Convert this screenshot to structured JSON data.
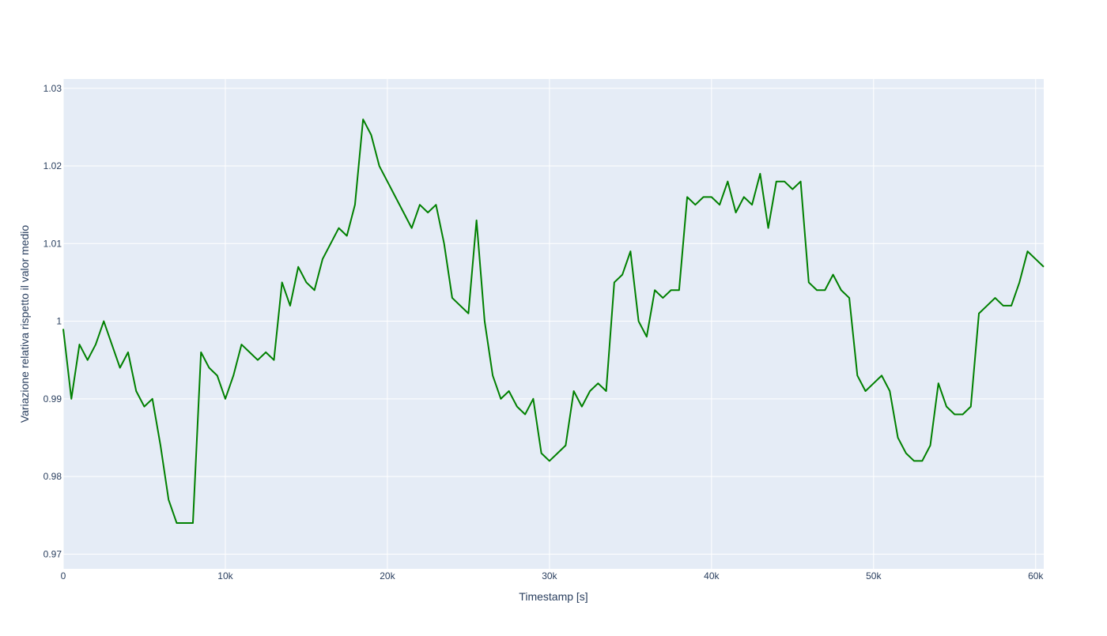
{
  "chart_data": {
    "type": "line",
    "x_label": "Timestamp [s]",
    "y_label": "Variazione relativa rispetto il valor medio",
    "x": [
      0,
      500,
      1000,
      1500,
      2000,
      2500,
      3000,
      3500,
      4000,
      4500,
      5000,
      5500,
      6000,
      6500,
      7000,
      7500,
      8000,
      8500,
      9000,
      9500,
      10000,
      10500,
      11000,
      11500,
      12000,
      12500,
      13000,
      13500,
      14000,
      14500,
      15000,
      15500,
      16000,
      16500,
      17000,
      17500,
      18000,
      18500,
      19000,
      19500,
      20000,
      20500,
      21000,
      21500,
      22000,
      22500,
      23000,
      23500,
      24000,
      24500,
      25000,
      25500,
      26000,
      26500,
      27000,
      27500,
      28000,
      28500,
      29000,
      29500,
      30000,
      30500,
      31000,
      31500,
      32000,
      32500,
      33000,
      33500,
      34000,
      34500,
      35000,
      35500,
      36000,
      36500,
      37000,
      37500,
      38000,
      38500,
      39000,
      39500,
      40000,
      40500,
      41000,
      41500,
      42000,
      42500,
      43000,
      43500,
      44000,
      44500,
      45000,
      45500,
      46000,
      46500,
      47000,
      47500,
      48000,
      48500,
      49000,
      49500,
      50000,
      50500,
      51000,
      51500,
      52000,
      52500,
      53000,
      53500,
      54000,
      54500,
      55000,
      55500,
      56000,
      56500,
      57000,
      57500,
      58000,
      58500,
      59000,
      59500,
      60000,
      60500
    ],
    "series": [
      {
        "name": "trace",
        "color": "#008000",
        "values": [
          0.999,
          0.99,
          0.997,
          0.995,
          0.997,
          1.0,
          0.997,
          0.994,
          0.996,
          0.991,
          0.989,
          0.99,
          0.984,
          0.977,
          0.974,
          0.974,
          0.974,
          0.996,
          0.994,
          0.993,
          0.99,
          0.993,
          0.997,
          0.996,
          0.995,
          0.996,
          0.995,
          1.005,
          1.002,
          1.007,
          1.005,
          1.004,
          1.008,
          1.01,
          1.012,
          1.011,
          1.015,
          1.026,
          1.024,
          1.02,
          1.018,
          1.016,
          1.014,
          1.012,
          1.015,
          1.014,
          1.015,
          1.01,
          1.003,
          1.002,
          1.001,
          1.013,
          1.0,
          0.993,
          0.99,
          0.991,
          0.989,
          0.988,
          0.99,
          0.983,
          0.982,
          0.983,
          0.984,
          0.991,
          0.989,
          0.991,
          0.992,
          0.991,
          1.005,
          1.006,
          1.009,
          1.0,
          0.998,
          1.004,
          1.003,
          1.004,
          1.004,
          1.016,
          1.015,
          1.016,
          1.016,
          1.015,
          1.018,
          1.014,
          1.016,
          1.015,
          1.019,
          1.012,
          1.018,
          1.018,
          1.017,
          1.018,
          1.005,
          1.004,
          1.004,
          1.006,
          1.004,
          1.003,
          0.993,
          0.991,
          0.992,
          0.993,
          0.991,
          0.985,
          0.983,
          0.982,
          0.982,
          0.984,
          0.992,
          0.989,
          0.988,
          0.988,
          0.989,
          1.001,
          1.002,
          1.003,
          1.002,
          1.002,
          1.005,
          1.009,
          1.008,
          1.007
        ]
      }
    ],
    "xlim": [
      0,
      60500
    ],
    "ylim": [
      0.9681,
      1.0312
    ],
    "xticks": [
      0,
      {
        "value": 10000,
        "label": "10k"
      },
      {
        "value": 20000,
        "label": "20k"
      },
      {
        "value": 30000,
        "label": "30k"
      },
      {
        "value": 40000,
        "label": "40k"
      },
      {
        "value": 50000,
        "label": "50k"
      },
      {
        "value": 60000,
        "label": "60k"
      }
    ],
    "yticks": [
      0.97,
      0.98,
      0.99,
      1,
      1.01,
      1.02,
      1.03
    ],
    "grid": true
  }
}
